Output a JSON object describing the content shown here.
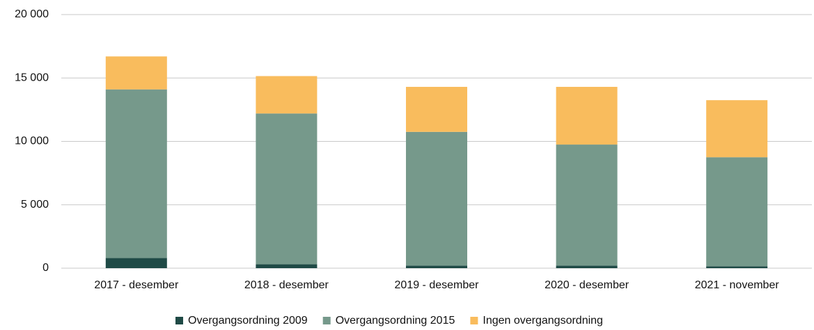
{
  "chart_data": {
    "type": "stacked_bar",
    "categories": [
      "2017 - desember",
      "2018 - desember",
      "2019 - desember",
      "2020 - desember",
      "2021 - november"
    ],
    "series": [
      {
        "name": "Overgangsordning 2009",
        "color": "#1f4a46",
        "values": [
          800,
          300,
          200,
          200,
          150
        ]
      },
      {
        "name": "Overgangsordning 2015",
        "color": "#76998b",
        "values": [
          13300,
          11900,
          10550,
          9550,
          8600
        ]
      },
      {
        "name": "Ingen overgangsordning",
        "color": "#f9bc5d",
        "values": [
          2600,
          2950,
          3550,
          4550,
          4500
        ]
      }
    ],
    "ylim": [
      0,
      20000
    ],
    "yticks": [
      0,
      {
        "value": 5000,
        "label": "5 000"
      },
      {
        "value": 10000,
        "label": "10 000"
      },
      {
        "value": 15000,
        "label": "15 000"
      },
      {
        "value": 20000,
        "label": "20 000"
      }
    ],
    "grid": true,
    "legend": "bottom"
  }
}
